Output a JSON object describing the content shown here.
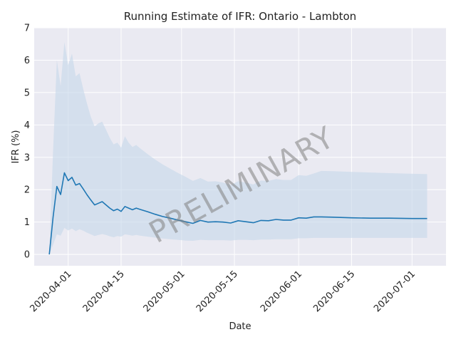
{
  "chart_data": {
    "type": "line",
    "title": "Running Estimate of IFR: Ontario - Lambton",
    "xlabel": "Date",
    "ylabel": "IFR (%)",
    "watermark": "PRELIMINARY",
    "grid": true,
    "xlim": [
      "2020-03-23",
      "2020-07-10"
    ],
    "ylim": [
      -0.35,
      7
    ],
    "x_ticks": [
      "2020-04-01",
      "2020-04-15",
      "2020-05-01",
      "2020-05-15",
      "2020-06-01",
      "2020-06-15",
      "2020-07-01"
    ],
    "y_ticks": [
      0,
      1,
      2,
      3,
      4,
      5,
      6,
      7
    ],
    "colors": {
      "background": "#eaeaf2",
      "grid": "#ffffff",
      "line": "#1f77b4",
      "band": "#c5d7ea"
    },
    "series": [
      {
        "x": [
          "2020-03-27",
          "2020-03-28",
          "2020-03-29",
          "2020-03-30",
          "2020-03-31",
          "2020-04-01",
          "2020-04-02",
          "2020-04-03",
          "2020-04-04",
          "2020-04-05",
          "2020-04-06",
          "2020-04-07",
          "2020-04-08",
          "2020-04-09",
          "2020-04-10",
          "2020-04-11",
          "2020-04-12",
          "2020-04-13",
          "2020-04-14",
          "2020-04-15",
          "2020-04-16",
          "2020-04-17",
          "2020-04-18",
          "2020-04-19",
          "2020-04-20",
          "2020-04-22",
          "2020-04-24",
          "2020-04-26",
          "2020-04-28",
          "2020-04-30",
          "2020-05-02",
          "2020-05-04",
          "2020-05-06",
          "2020-05-08",
          "2020-05-10",
          "2020-05-12",
          "2020-05-14",
          "2020-05-16",
          "2020-05-18",
          "2020-05-20",
          "2020-05-22",
          "2020-05-24",
          "2020-05-26",
          "2020-05-28",
          "2020-05-30",
          "2020-06-01",
          "2020-06-03",
          "2020-06-05",
          "2020-06-07",
          "2020-06-10",
          "2020-06-15",
          "2020-06-20",
          "2020-06-25",
          "2020-07-01",
          "2020-07-05"
        ],
        "values": [
          0,
          1.15,
          2.1,
          1.85,
          2.52,
          2.28,
          2.38,
          2.14,
          2.19,
          2.02,
          1.84,
          1.68,
          1.53,
          1.58,
          1.63,
          1.53,
          1.43,
          1.35,
          1.4,
          1.33,
          1.48,
          1.43,
          1.38,
          1.43,
          1.39,
          1.32,
          1.24,
          1.17,
          1.12,
          1.06,
          1.01,
          0.96,
          1.05,
          1.0,
          1.01,
          1.0,
          0.97,
          1.04,
          1.01,
          0.98,
          1.05,
          1.04,
          1.08,
          1.06,
          1.06,
          1.13,
          1.12,
          1.16,
          1.16,
          1.15,
          1.13,
          1.12,
          1.12,
          1.11,
          1.11
        ],
        "lower": [
          0,
          0.3,
          0.62,
          0.58,
          0.82,
          0.74,
          0.8,
          0.72,
          0.78,
          0.73,
          0.67,
          0.62,
          0.57,
          0.6,
          0.63,
          0.6,
          0.56,
          0.53,
          0.57,
          0.55,
          0.62,
          0.6,
          0.58,
          0.6,
          0.58,
          0.55,
          0.52,
          0.49,
          0.47,
          0.45,
          0.43,
          0.42,
          0.45,
          0.44,
          0.44,
          0.44,
          0.43,
          0.45,
          0.45,
          0.44,
          0.46,
          0.46,
          0.47,
          0.47,
          0.47,
          0.5,
          0.5,
          0.51,
          0.51,
          0.51,
          0.51,
          0.51,
          0.51,
          0.51,
          0.51
        ],
        "upper": [
          0,
          3.2,
          6.0,
          5.2,
          6.55,
          5.85,
          6.2,
          5.5,
          5.6,
          5.1,
          4.65,
          4.25,
          3.95,
          4.05,
          4.1,
          3.85,
          3.6,
          3.4,
          3.45,
          3.3,
          3.65,
          3.45,
          3.32,
          3.38,
          3.28,
          3.1,
          2.93,
          2.78,
          2.65,
          2.52,
          2.4,
          2.27,
          2.36,
          2.25,
          2.26,
          2.22,
          2.14,
          2.26,
          2.22,
          2.16,
          2.28,
          2.27,
          2.33,
          2.3,
          2.3,
          2.45,
          2.43,
          2.5,
          2.58,
          2.57,
          2.55,
          2.53,
          2.51,
          2.49,
          2.48
        ]
      }
    ]
  }
}
